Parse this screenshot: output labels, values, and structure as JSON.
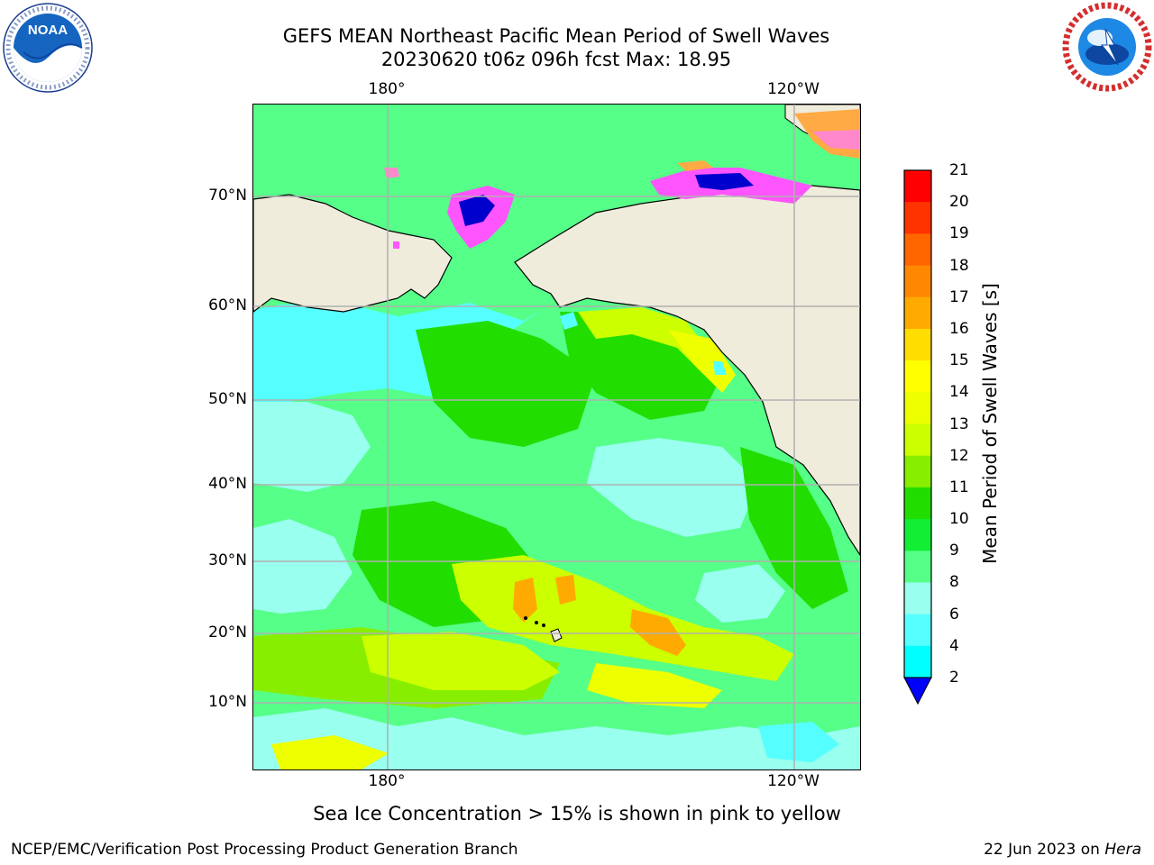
{
  "header": {
    "title_line1": "GEFS MEAN Northeast Pacific Mean Period of Swell Waves",
    "title_line2": "20230620 t06z 096h fcst   Max: 18.95"
  },
  "logos": {
    "left": {
      "icon": "noaa-logo",
      "text": "NOAA",
      "ring_text": "NATIONAL OCEANIC AND ATMOSPHERIC ADMINISTRATION · U.S. DEPARTMENT OF COMMERCE"
    },
    "right": {
      "icon": "nws-logo",
      "ring_text": "NATIONAL WEATHER SERVICE"
    }
  },
  "map": {
    "lon_labels_top": [
      "180°",
      "120°W"
    ],
    "lon_labels_bottom": [
      "180°",
      "120°W"
    ],
    "lat_labels": [
      "70°N",
      "60°N",
      "50°N",
      "40°N",
      "30°N",
      "20°N",
      "10°N"
    ],
    "land_color": "#efecdc",
    "grid_color": "#b0b0b0"
  },
  "colorbar": {
    "label": "Mean Period of Swell Waves [s]",
    "ticks": [
      "21",
      "20",
      "19",
      "18",
      "17",
      "16",
      "15",
      "14",
      "13",
      "12",
      "11",
      "10",
      "9",
      "8",
      "6",
      "4",
      "2"
    ],
    "colors_top_to_bottom": [
      "#ff0000",
      "#ff3300",
      "#ff6600",
      "#ff8800",
      "#ffaa00",
      "#ffdd00",
      "#ffff00",
      "#eeff00",
      "#ccff00",
      "#88ee00",
      "#22dd00",
      "#11ee33",
      "#55ff88",
      "#99ffee",
      "#55ffff",
      "#00ffff",
      "#00ccff",
      "#0066ff"
    ],
    "extend_color": "#0000ff"
  },
  "subtitle": "Sea Ice Concentration > 15% is shown in pink to yellow",
  "footer": {
    "left": "NCEP/EMC/Verification Post Processing Product Generation Branch",
    "right_date": "22 Jun 2023 on",
    "right_host": "Hera"
  }
}
